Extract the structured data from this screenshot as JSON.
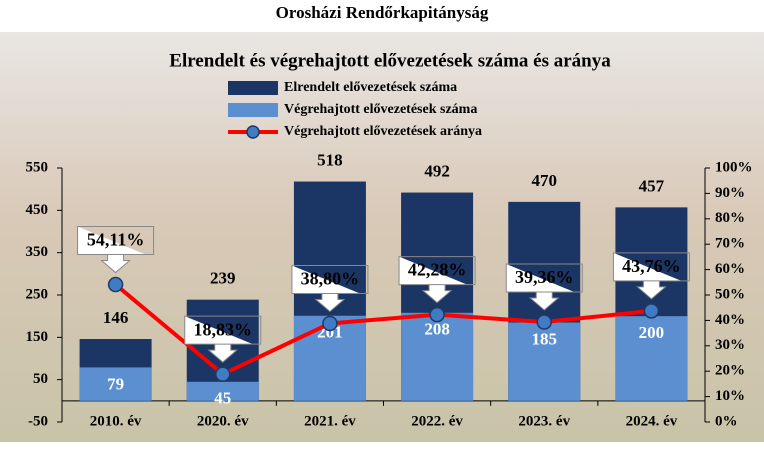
{
  "header": {
    "title": "Orosházi Rendőrkapitányság"
  },
  "chart_data": {
    "type": "bar",
    "title": "Elrendelt és végrehajtott elővezetések száma és aránya",
    "categories": [
      "2010. év",
      "2020. év",
      "2021. év",
      "2022. év",
      "2023. év",
      "2024. év"
    ],
    "series": [
      {
        "name": "Elrendelt elővezetések száma",
        "color": "#1b3564",
        "values": [
          146,
          239,
          518,
          492,
          470,
          457
        ]
      },
      {
        "name": "Végrehajtott elővezetések száma",
        "color": "#5b8fd0",
        "values": [
          79,
          45,
          201,
          208,
          185,
          200
        ]
      },
      {
        "name": "Végrehajtott elővezetések aránya",
        "color": "#ff0000",
        "type": "line",
        "axis": "y2",
        "values": [
          54.11,
          18.83,
          38.8,
          42.28,
          39.36,
          43.76
        ],
        "value_labels": [
          "54,11%",
          "18,83%",
          "38,80%",
          "42,28%",
          "39,36%",
          "43,76%"
        ]
      }
    ],
    "ylim": [
      -50,
      550
    ],
    "yticks": [
      -50,
      50,
      150,
      250,
      350,
      450,
      550
    ],
    "y2lim": [
      0,
      100
    ],
    "y2ticks": [
      {
        "value": 0,
        "label": "0%"
      },
      {
        "value": 10,
        "label": "10%"
      },
      {
        "value": 20,
        "label": "20%"
      },
      {
        "value": 30,
        "label": "30%"
      },
      {
        "value": 40,
        "label": "40%"
      },
      {
        "value": 50,
        "label": "50%"
      },
      {
        "value": 60,
        "label": "60%"
      },
      {
        "value": 70,
        "label": "70%"
      },
      {
        "value": 80,
        "label": "80%"
      },
      {
        "value": 90,
        "label": "90%"
      },
      {
        "value": 100,
        "label": "100%"
      }
    ]
  }
}
